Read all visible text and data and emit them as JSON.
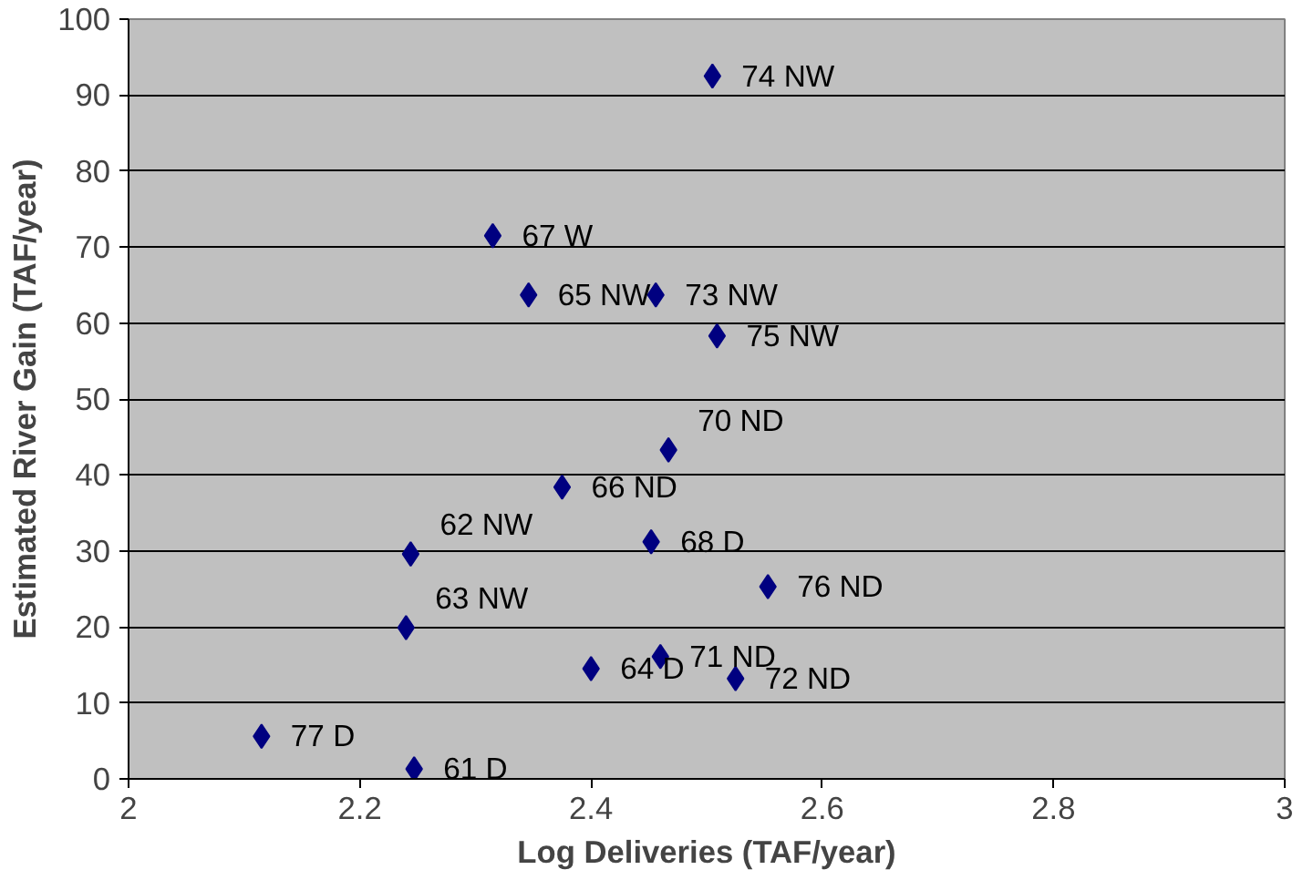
{
  "chart_data": {
    "type": "scatter",
    "xlabel": "Log Deliveries (TAF/year)",
    "ylabel": "Estimated River Gain (TAF/year)",
    "x": [
      2.505,
      2.315,
      2.346,
      2.456,
      2.509,
      2.467,
      2.375,
      2.452,
      2.244,
      2.553,
      2.24,
      2.46,
      2.4,
      2.525,
      2.115,
      2.247
    ],
    "series": [
      {
        "color": "#000080",
        "values": [
          92.5,
          71.5,
          63.7,
          63.7,
          58.3,
          43.3,
          38.4,
          31.2,
          29.6,
          25.3,
          19.9,
          16.1,
          14.5,
          13.2,
          5.6,
          1.3
        ]
      }
    ],
    "annotations": [
      {
        "text": "74 NW",
        "x": 2.505,
        "y": 92.5
      },
      {
        "text": "67 W",
        "x": 2.315,
        "y": 71.5
      },
      {
        "text": "65 NW",
        "x": 2.346,
        "y": 63.7
      },
      {
        "text": "73 NW",
        "x": 2.456,
        "y": 63.7
      },
      {
        "text": "75 NW",
        "x": 2.509,
        "y": 58.3
      },
      {
        "text": "70 ND",
        "x": 2.467,
        "y": 43.3
      },
      {
        "text": "66 ND",
        "x": 2.375,
        "y": 38.4
      },
      {
        "text": "68 D",
        "x": 2.452,
        "y": 31.2
      },
      {
        "text": "62 NW",
        "x": 2.244,
        "y": 29.6
      },
      {
        "text": "76 ND",
        "x": 2.553,
        "y": 25.3
      },
      {
        "text": "63 NW",
        "x": 2.24,
        "y": 19.9
      },
      {
        "text": "71 ND",
        "x": 2.46,
        "y": 16.1
      },
      {
        "text": "64 D",
        "x": 2.4,
        "y": 14.5
      },
      {
        "text": "72 ND",
        "x": 2.525,
        "y": 13.2
      },
      {
        "text": "77 D",
        "x": 2.115,
        "y": 5.6
      },
      {
        "text": "61 D",
        "x": 2.247,
        "y": 1.3
      }
    ],
    "xlim": [
      2,
      3
    ],
    "xticks": [
      2,
      2.2,
      2.4,
      2.6,
      2.8,
      3
    ],
    "ylim": [
      0,
      100
    ],
    "yticks": [
      0,
      10,
      20,
      30,
      40,
      50,
      60,
      70,
      80,
      90,
      100
    ],
    "grid": "y",
    "marker": "diamond"
  }
}
